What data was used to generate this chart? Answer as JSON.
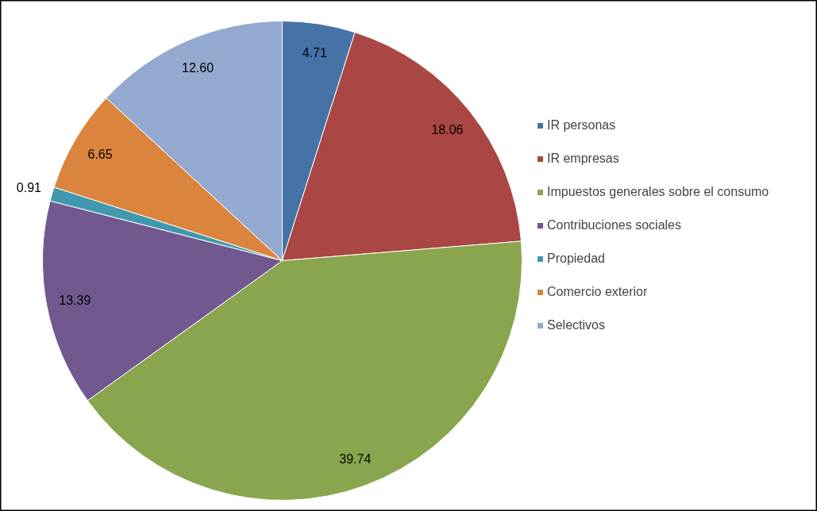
{
  "chart_data": {
    "type": "pie",
    "categories": [
      "IR personas",
      "IR empresas",
      "Impuestos generales sobre el consumo",
      "Contribuciones sociales",
      "Propiedad",
      "Comercio exterior",
      "Selectivos"
    ],
    "values": [
      4.71,
      18.06,
      39.74,
      13.39,
      0.91,
      6.65,
      12.6
    ],
    "colors": [
      "#4572a7",
      "#aa4643",
      "#89a54e",
      "#71588f",
      "#4198af",
      "#db843d",
      "#93a9cf"
    ],
    "value_labels": [
      "4.71",
      "18.06",
      "39.74",
      "13.39",
      "0.91",
      "6.65",
      "12.60"
    ],
    "legend": "right"
  }
}
